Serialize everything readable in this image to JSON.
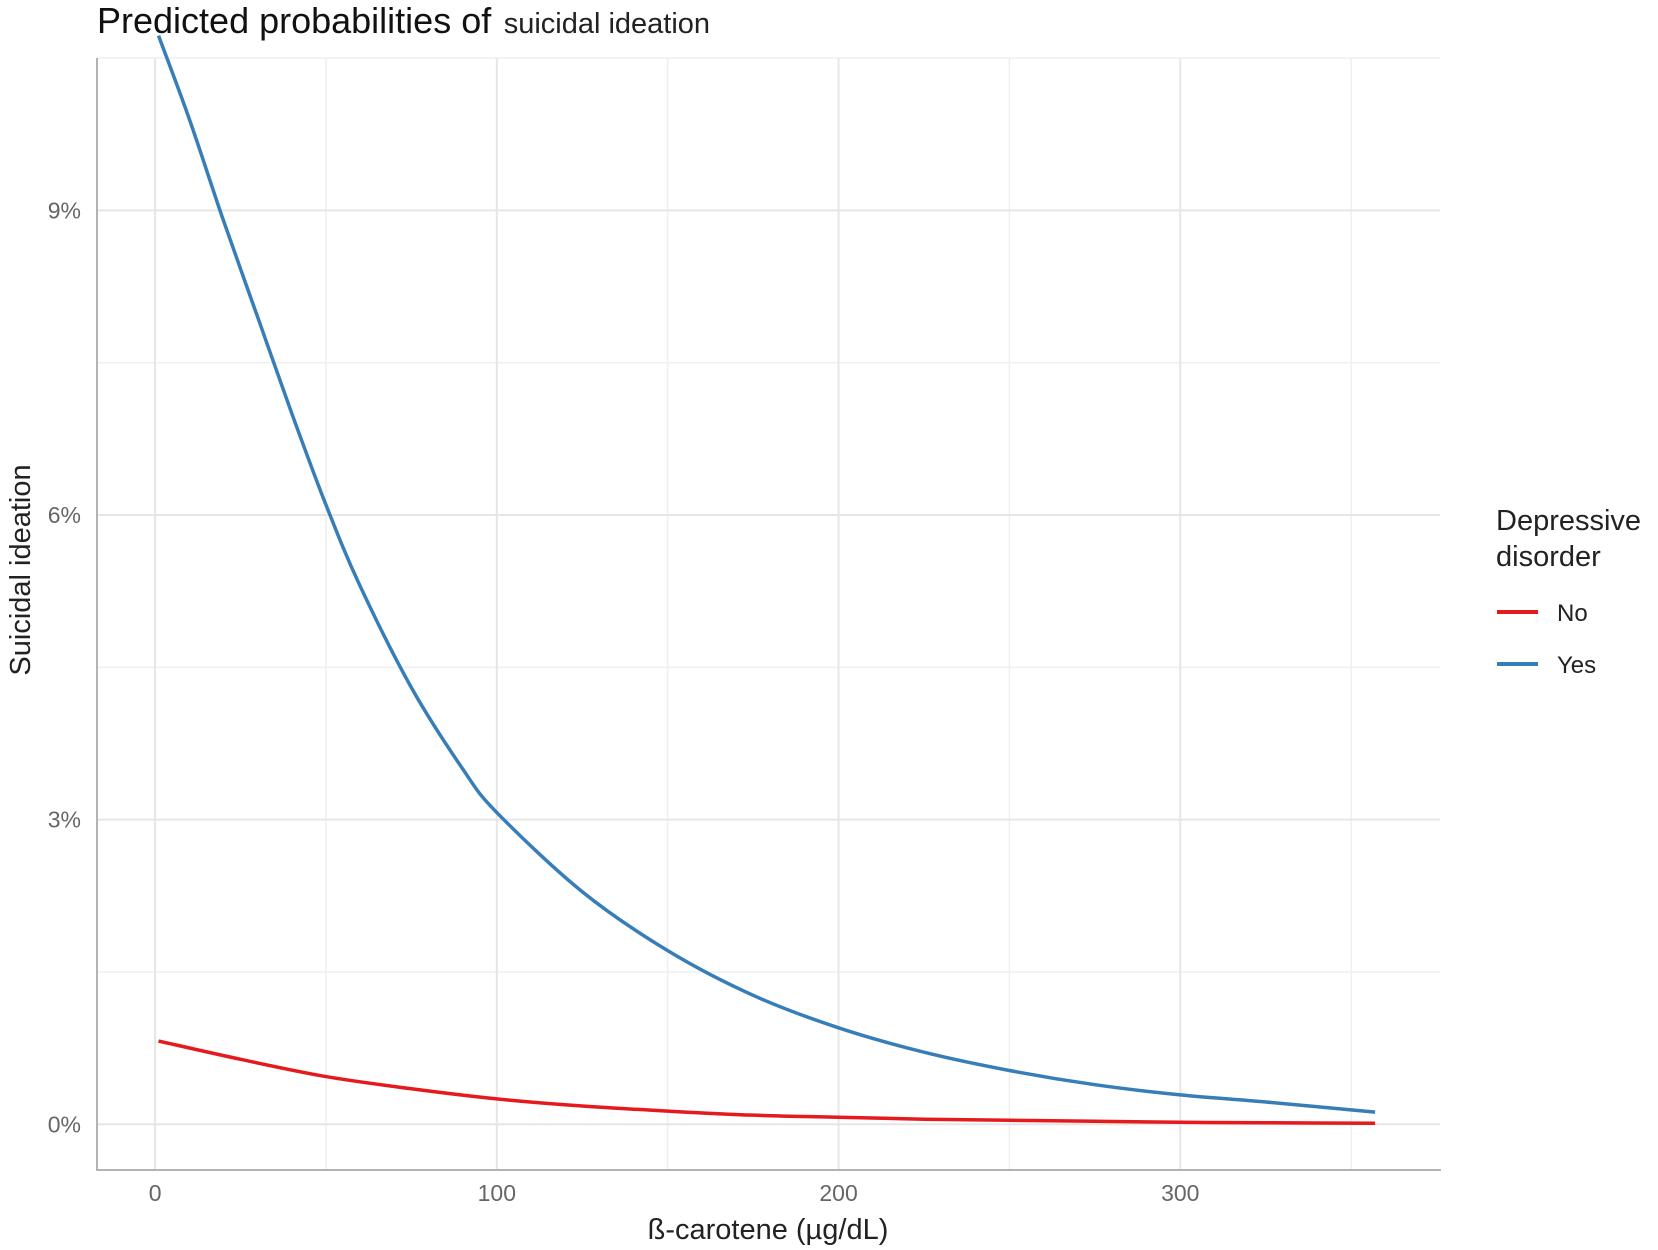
{
  "chart_data": {
    "type": "line",
    "title": "Predicted probabilities of",
    "title_suffix": "suicidal ideation",
    "xlabel": "ß-carotene (µg/dL)",
    "ylabel": "Suicidal ideation",
    "xlim": [
      -17,
      376
    ],
    "ylim": [
      -0.0045,
      0.105
    ],
    "x_ticks": [
      0,
      100,
      200,
      300
    ],
    "x_tick_labels": [
      "0",
      "100",
      "200",
      "300"
    ],
    "y_ticks": [
      0,
      0.03,
      0.06,
      0.09
    ],
    "y_tick_labels": [
      "0%",
      "3%",
      "6%",
      "9%"
    ],
    "grid": true,
    "legend": {
      "title_lines": [
        "Depressive",
        "disorder"
      ],
      "position": "right"
    },
    "series": [
      {
        "name": "No",
        "color": "#E41A1C",
        "x": [
          1,
          25,
          50,
          75,
          100,
          125,
          150,
          175,
          200,
          225,
          250,
          275,
          300,
          325,
          357
        ],
        "y": [
          0.0082,
          0.0064,
          0.0047,
          0.0035,
          0.0025,
          0.0018,
          0.0013,
          0.0009,
          0.0007,
          0.0005,
          0.0004,
          0.0003,
          0.0002,
          0.00015,
          0.0001
        ]
      },
      {
        "name": "Yes",
        "color": "#377EB8",
        "x": [
          1,
          10,
          20,
          30,
          40,
          50,
          60,
          75,
          90,
          100,
          125,
          150,
          175,
          200,
          225,
          250,
          275,
          300,
          325,
          357
        ],
        "y": [
          0.1072,
          0.099,
          0.089,
          0.0795,
          0.07,
          0.061,
          0.053,
          0.043,
          0.035,
          0.0307,
          0.0229,
          0.0171,
          0.0127,
          0.0095,
          0.0071,
          0.0053,
          0.0039,
          0.0029,
          0.0022,
          0.0012
        ]
      }
    ]
  }
}
